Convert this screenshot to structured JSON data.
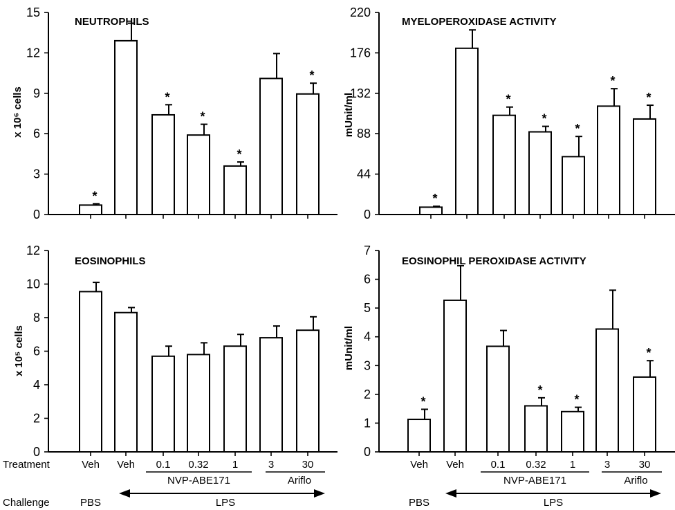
{
  "figure": {
    "treatment_label": "Treatment",
    "challenge_label": "Challenge",
    "groups": [
      {
        "name": "NVP-ABE171",
        "doses": [
          "0.1",
          "0.32",
          "1"
        ]
      },
      {
        "name": "Ariflo",
        "doses": [
          "3",
          "30"
        ]
      }
    ],
    "challenge": {
      "pbs": "PBS",
      "lps": "LPS"
    }
  },
  "chart_data": [
    {
      "type": "bar",
      "title": "NEUTROPHILS",
      "ylabel": "x 10⁶ cells",
      "ylim": [
        0,
        15
      ],
      "yticks": [
        0,
        3,
        6,
        9,
        12,
        15
      ],
      "categories": [
        "Veh",
        "Veh",
        "0.1",
        "0.32",
        "1",
        "3",
        "30"
      ],
      "values": [
        0.7,
        12.9,
        7.4,
        5.9,
        3.6,
        10.1,
        8.95
      ],
      "errors": [
        0.1,
        1.3,
        0.75,
        0.8,
        0.3,
        1.85,
        0.8
      ],
      "significant": [
        true,
        false,
        true,
        true,
        true,
        false,
        true
      ]
    },
    {
      "type": "bar",
      "title": "MYELOPEROXIDASE ACTIVITY",
      "ylabel": "mUnit/ml",
      "ylim": [
        0,
        220
      ],
      "yticks": [
        0,
        44,
        88,
        132,
        176,
        220
      ],
      "categories": [
        "Veh",
        "Veh",
        "0.1",
        "0.32",
        "1",
        "3",
        "30"
      ],
      "values": [
        8,
        181,
        108,
        90,
        63,
        118,
        104
      ],
      "errors": [
        1,
        20,
        9,
        6,
        22,
        19,
        15
      ],
      "significant": [
        true,
        false,
        true,
        true,
        true,
        true,
        true
      ]
    },
    {
      "type": "bar",
      "title": "EOSINOPHILS",
      "ylabel": "x 10⁵ cells",
      "ylim": [
        0,
        12
      ],
      "yticks": [
        0,
        2,
        4,
        6,
        8,
        10,
        12
      ],
      "categories": [
        "Veh",
        "Veh",
        "0.1",
        "0.32",
        "1",
        "3",
        "30"
      ],
      "values": [
        9.55,
        8.3,
        5.7,
        5.8,
        6.3,
        6.8,
        7.25
      ],
      "errors": [
        0.55,
        0.3,
        0.6,
        0.7,
        0.7,
        0.7,
        0.8
      ],
      "significant": [
        false,
        false,
        false,
        false,
        false,
        false,
        false
      ]
    },
    {
      "type": "bar",
      "title": "EOSINOPHIL PEROXIDASE ACTIVITY",
      "ylabel": "mUnit/ml",
      "ylim": [
        0,
        7
      ],
      "yticks": [
        0,
        1,
        2,
        3,
        4,
        5,
        6,
        7
      ],
      "categories": [
        "Veh",
        "Veh",
        "0.1",
        "0.32",
        "1",
        "3",
        "30"
      ],
      "values": [
        1.13,
        5.27,
        3.67,
        1.6,
        1.4,
        4.27,
        2.6
      ],
      "errors": [
        0.35,
        1.2,
        0.55,
        0.28,
        0.15,
        1.35,
        0.57
      ],
      "significant": [
        true,
        false,
        false,
        true,
        true,
        false,
        true
      ]
    }
  ]
}
